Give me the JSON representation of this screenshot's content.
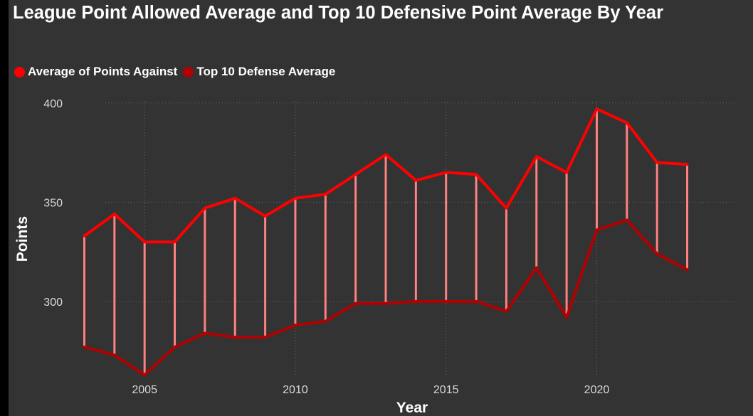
{
  "colors": {
    "background": "#333333",
    "page": "#000000",
    "series_points_against": "#ff0000",
    "series_top10": "#b30000",
    "range_bars": "#ff8080",
    "grid": "#666666",
    "text": "#ffffff",
    "tick_text": "#d9d9d9"
  },
  "title": "League Point Allowed Average and Top 10 Defensive Point Average By Year",
  "chart_data": {
    "type": "line",
    "title": "League Point Allowed Average and Top 10 Defensive Point Average By Year",
    "xlabel": "Year",
    "ylabel": "Points",
    "x": [
      2003,
      2004,
      2005,
      2006,
      2007,
      2008,
      2009,
      2010,
      2011,
      2012,
      2013,
      2014,
      2015,
      2016,
      2017,
      2018,
      2019,
      2020,
      2021,
      2022,
      2023
    ],
    "series": [
      {
        "name": "Average of Points Against",
        "color": "#ff0000",
        "values": [
          333,
          344,
          330,
          330,
          347,
          352,
          343,
          352,
          354,
          364,
          374,
          361,
          365,
          364,
          347,
          373,
          365,
          397,
          390,
          370,
          369
        ]
      },
      {
        "name": "Top 10 Defense Average",
        "color": "#b30000",
        "values": [
          277,
          273,
          263,
          277,
          284,
          282,
          282,
          288,
          290,
          299,
          299,
          300,
          300,
          300,
          295,
          317,
          292,
          336,
          341,
          324,
          316
        ]
      }
    ],
    "range_bars": "vertical bars connecting the two series at each year",
    "xticks": [
      "2005",
      "2010",
      "2015",
      "2020"
    ],
    "yticks": [
      "300",
      "350",
      "400"
    ],
    "xlim": [
      2001.1,
      2024.9
    ],
    "ylim": [
      262,
      401
    ],
    "grid": true,
    "legend_position": "top-left"
  }
}
